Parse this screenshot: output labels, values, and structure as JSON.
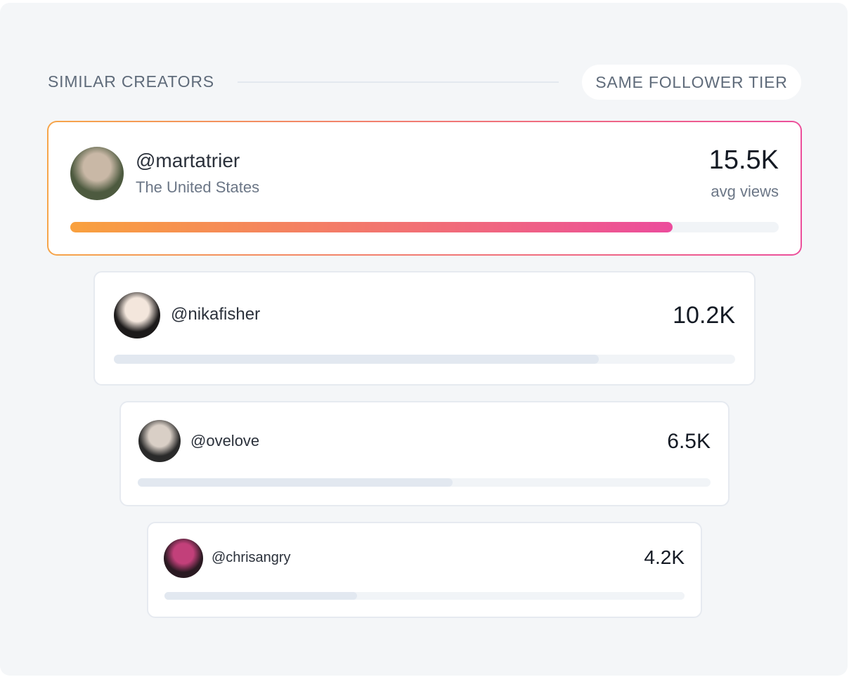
{
  "header": {
    "title": "SIMILAR CREATORS",
    "badge": "SAME FOLLOWER TIER"
  },
  "creators": [
    {
      "handle": "@martatrier",
      "location": "The United States",
      "avg_views": "15.5K",
      "metric_label": "avg views",
      "progress": 85
    },
    {
      "handle": "@nikafisher",
      "avg_views": "10.2K",
      "progress": 78
    },
    {
      "handle": "@ovelove",
      "avg_views": "6.5K",
      "progress": 55
    },
    {
      "handle": "@chrisangry",
      "avg_views": "4.2K",
      "progress": 37
    }
  ]
}
